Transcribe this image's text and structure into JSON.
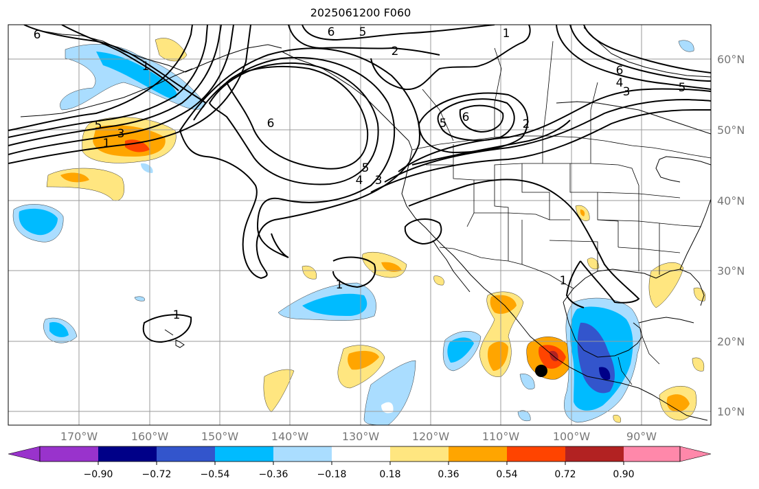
{
  "title": "2025061200 F060",
  "lat_labels": [
    "60°N",
    "50°N",
    "40°N",
    "30°N",
    "20°N",
    "10°N"
  ],
  "lon_labels": [
    "170°W",
    "160°W",
    "150°W",
    "140°W",
    "130°W",
    "120°W",
    "110°W",
    "100°W",
    "90°W"
  ],
  "colorbar": {
    "labels": [
      "−0.90",
      "−0.72",
      "−0.54",
      "−0.36",
      "−0.18",
      "0.18",
      "0.36",
      "0.54",
      "0.72",
      "0.90"
    ],
    "colors": [
      "#9933cc",
      "#000088",
      "#3355cc",
      "#00bbff",
      "#aaddff",
      "#ffffff",
      "#ffe680",
      "#ffa500",
      "#ff4400",
      "#b22222",
      "#ff88aa"
    ]
  },
  "contour_labels": [
    "6",
    "5",
    "1",
    "2",
    "5",
    "6",
    "5",
    "3",
    "1",
    "6",
    "5",
    "6",
    "2",
    "4",
    "3",
    "5",
    "4",
    "3",
    "6",
    "1",
    "1",
    "1",
    "1"
  ],
  "marker": "storm-position-dot"
}
